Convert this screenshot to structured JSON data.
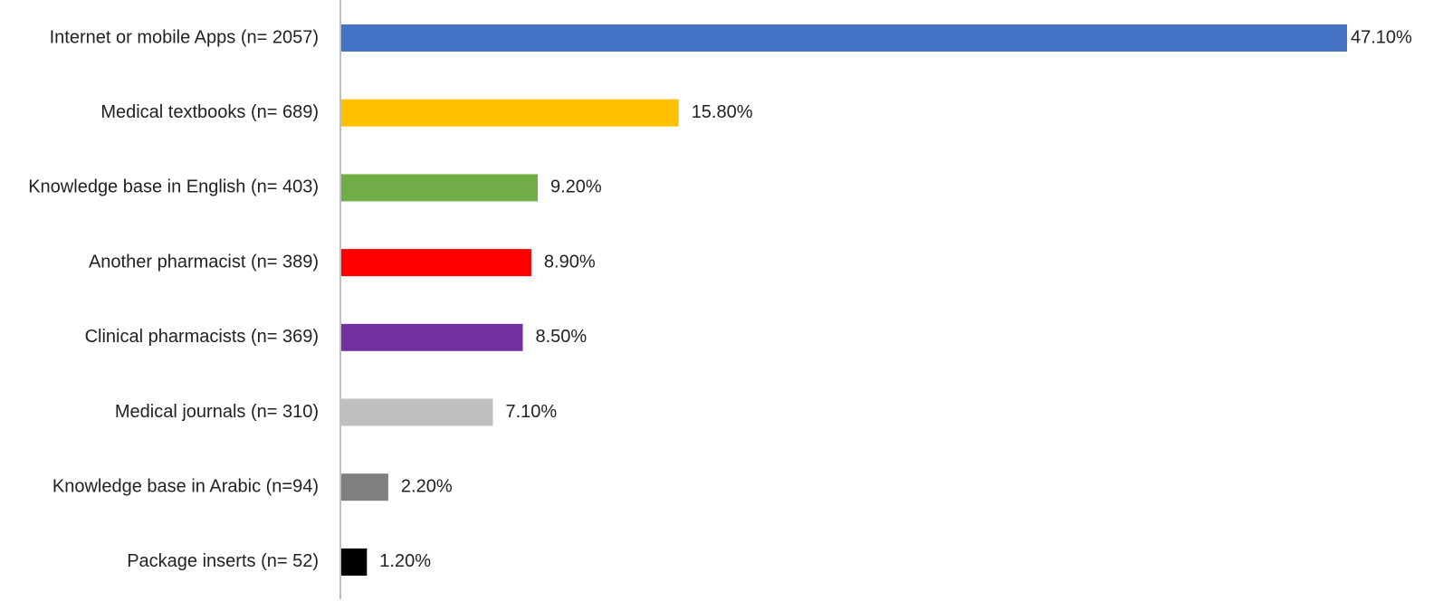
{
  "chart_data": {
    "type": "bar",
    "orientation": "horizontal",
    "categories": [
      "Internet or mobile Apps (n= 2057)",
      "Medical textbooks (n= 689)",
      "Knowledge base in English (n= 403)",
      "Another pharmacist (n= 389)",
      "Clinical pharmacists (n= 369)",
      "Medical journals (n= 310)",
      "Knowledge base in Arabic (n=94)",
      "Package inserts (n= 52)"
    ],
    "values": [
      47.1,
      15.8,
      9.2,
      8.9,
      8.5,
      7.1,
      2.2,
      1.2
    ],
    "value_labels": [
      "47.10%",
      "15.80%",
      "9.20%",
      "8.90%",
      "8.50%",
      "7.10%",
      "2.20%",
      "1.20%"
    ],
    "colors": [
      "#4472c4",
      "#ffc000",
      "#70ad47",
      "#ff0000",
      "#7030a0",
      "#bfbfbf",
      "#7f7f7f",
      "#000000"
    ]
  }
}
